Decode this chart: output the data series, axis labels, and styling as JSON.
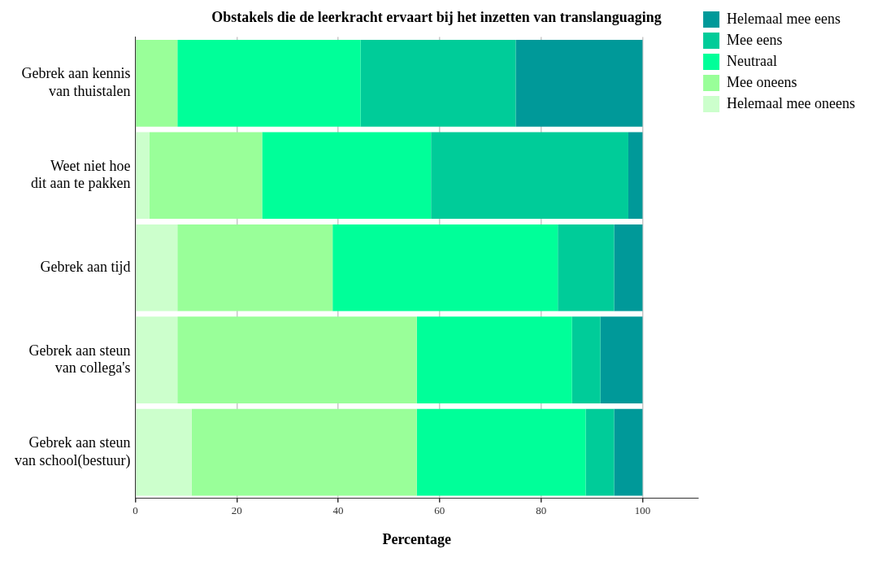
{
  "chart_data": {
    "type": "bar",
    "orientation": "horizontal",
    "stacked": true,
    "title": "Obstakels die de leerkracht ervaart bij het inzetten van translanguaging",
    "xlabel": "Percentage",
    "categories": [
      "Gebrek aan kennis\nvan thuistalen",
      "Weet niet hoe\ndit aan te pakken",
      "Gebrek aan tijd",
      "Gebrek aan steun\nvan collega's",
      "Gebrek aan steun\nvan school(bestuur)"
    ],
    "series": [
      {
        "name": "Helemaal mee oneens",
        "color": "#ccffcc",
        "values": [
          0,
          2.8,
          8.3,
          8.3,
          11.1
        ]
      },
      {
        "name": "Mee oneens",
        "color": "#99ff99",
        "values": [
          8.3,
          22.2,
          30.6,
          47.2,
          44.4
        ]
      },
      {
        "name": "Neutraal",
        "color": "#00ff99",
        "values": [
          36.1,
          33.3,
          44.4,
          30.6,
          33.3
        ]
      },
      {
        "name": "Mee eens",
        "color": "#00cc99",
        "values": [
          30.6,
          38.9,
          11.1,
          5.6,
          5.6
        ]
      },
      {
        "name": "Helemaal mee eens",
        "color": "#009999",
        "values": [
          25,
          2.8,
          5.6,
          8.3,
          5.6
        ]
      }
    ],
    "xlim": [
      0,
      111
    ],
    "xticks": [
      0,
      20,
      40,
      60,
      80,
      100
    ],
    "grid": "x",
    "legend": "top right"
  }
}
